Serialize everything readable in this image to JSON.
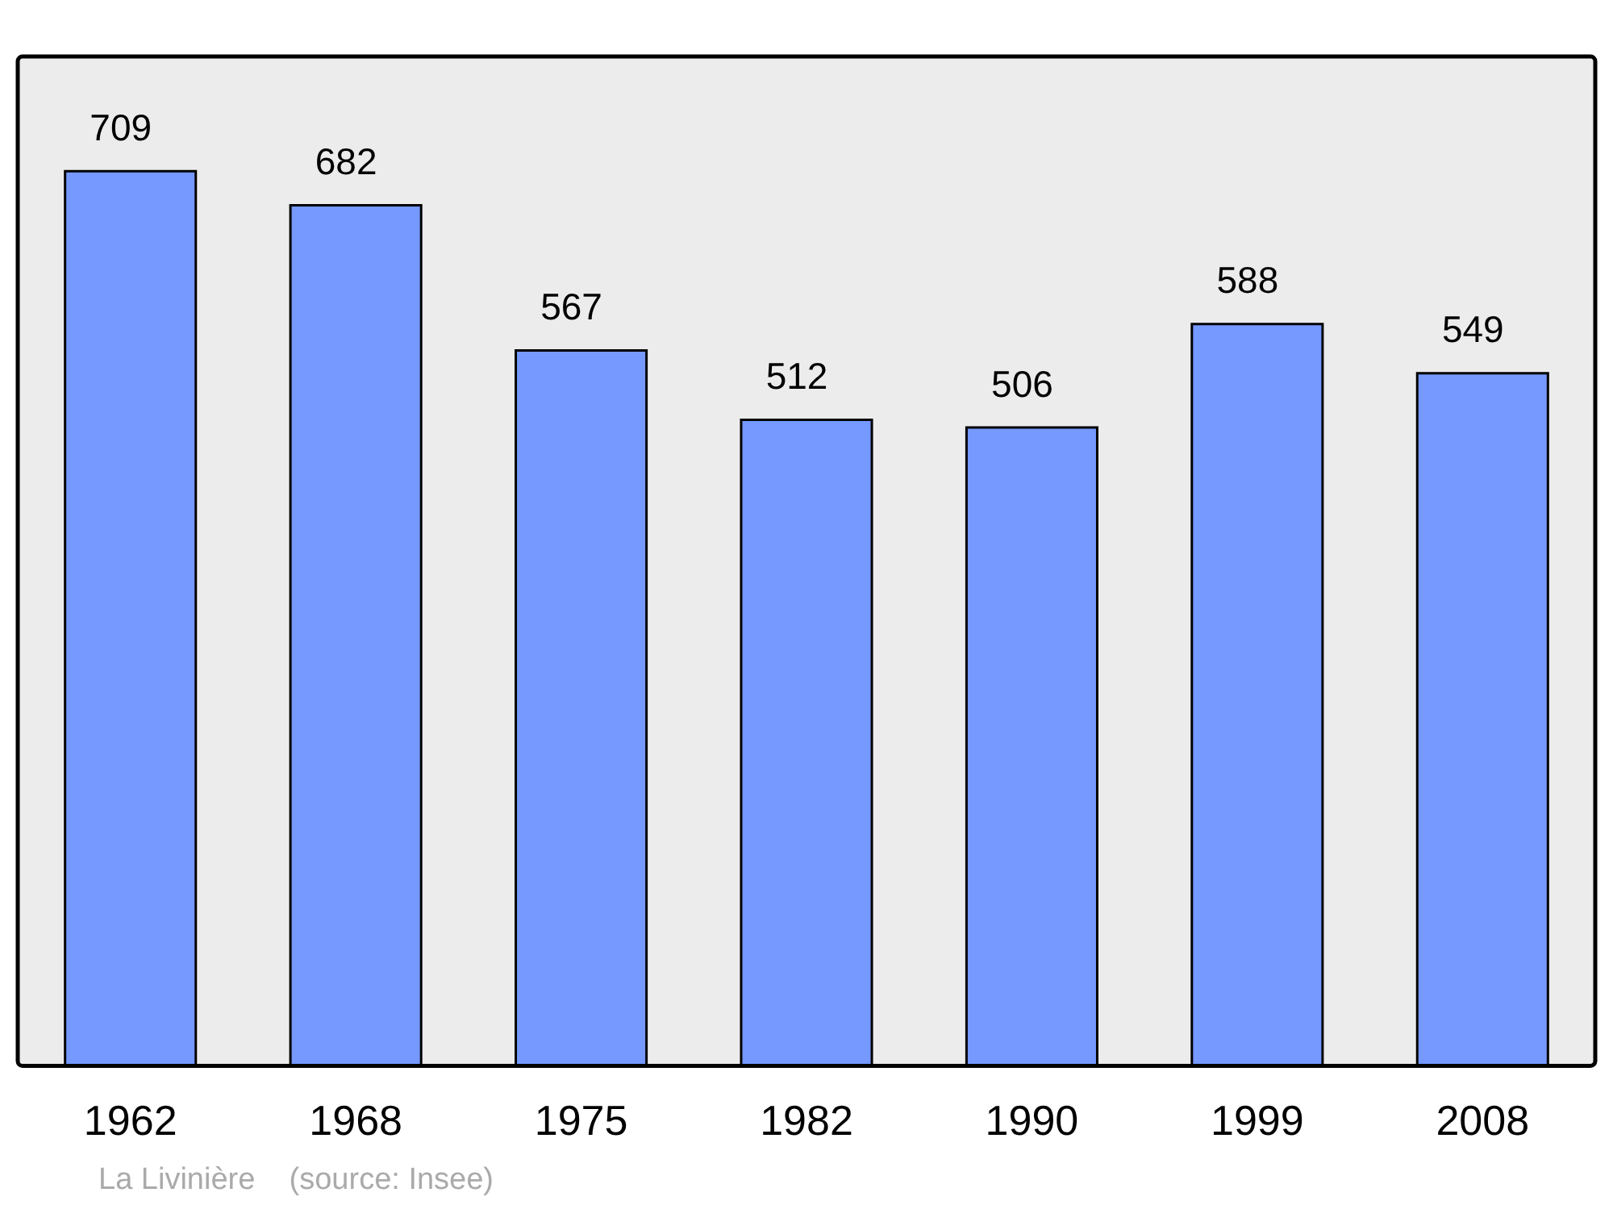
{
  "chart_data": {
    "type": "bar",
    "categories": [
      "1962",
      "1968",
      "1975",
      "1982",
      "1990",
      "1999",
      "2008"
    ],
    "values": [
      709,
      682,
      567,
      512,
      506,
      588,
      549
    ],
    "color": "#7599ff",
    "data_labels": true,
    "grid": false,
    "legend": false,
    "annotations": [
      "La Livinière    (source: Insee)"
    ]
  }
}
